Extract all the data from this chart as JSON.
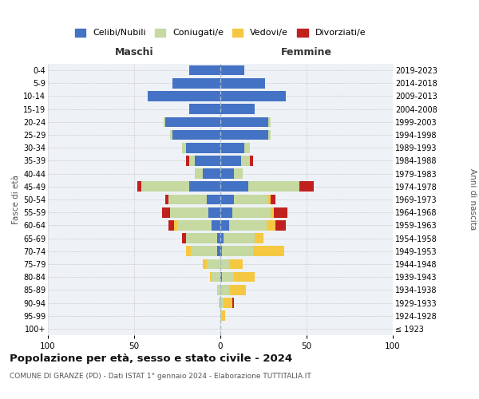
{
  "age_groups": [
    "100+",
    "95-99",
    "90-94",
    "85-89",
    "80-84",
    "75-79",
    "70-74",
    "65-69",
    "60-64",
    "55-59",
    "50-54",
    "45-49",
    "40-44",
    "35-39",
    "30-34",
    "25-29",
    "20-24",
    "15-19",
    "10-14",
    "5-9",
    "0-4"
  ],
  "birth_years": [
    "≤ 1923",
    "1924-1928",
    "1929-1933",
    "1934-1938",
    "1939-1943",
    "1944-1948",
    "1949-1953",
    "1954-1958",
    "1959-1963",
    "1964-1968",
    "1969-1973",
    "1974-1978",
    "1979-1983",
    "1984-1988",
    "1989-1993",
    "1994-1998",
    "1999-2003",
    "2004-2008",
    "2009-2013",
    "2014-2018",
    "2019-2023"
  ],
  "m_cel": [
    0,
    0,
    0,
    0,
    0,
    0,
    2,
    2,
    5,
    7,
    8,
    18,
    10,
    15,
    20,
    28,
    32,
    18,
    42,
    28,
    18
  ],
  "m_con": [
    0,
    0,
    1,
    2,
    5,
    8,
    15,
    18,
    20,
    22,
    22,
    28,
    5,
    3,
    2,
    1,
    1,
    0,
    0,
    0,
    0
  ],
  "m_ved": [
    0,
    0,
    0,
    0,
    1,
    2,
    3,
    0,
    2,
    0,
    0,
    0,
    0,
    0,
    0,
    0,
    0,
    0,
    0,
    0,
    0
  ],
  "m_div": [
    0,
    0,
    0,
    0,
    0,
    0,
    0,
    2,
    3,
    5,
    2,
    2,
    0,
    2,
    0,
    0,
    0,
    0,
    0,
    0,
    0
  ],
  "f_nub": [
    0,
    0,
    0,
    0,
    1,
    0,
    1,
    2,
    5,
    7,
    8,
    16,
    8,
    12,
    14,
    28,
    28,
    20,
    38,
    26,
    14
  ],
  "f_con": [
    0,
    1,
    2,
    5,
    7,
    5,
    18,
    18,
    22,
    22,
    20,
    30,
    5,
    5,
    3,
    1,
    1,
    0,
    0,
    0,
    0
  ],
  "f_ved": [
    0,
    2,
    5,
    10,
    12,
    8,
    18,
    5,
    5,
    2,
    1,
    0,
    0,
    0,
    0,
    0,
    0,
    0,
    0,
    0,
    0
  ],
  "f_div": [
    0,
    0,
    1,
    0,
    0,
    0,
    0,
    0,
    6,
    8,
    3,
    8,
    0,
    2,
    0,
    0,
    0,
    0,
    0,
    0,
    0
  ],
  "colors": {
    "celibi_nubili": "#4472c4",
    "coniugati": "#c5d9a0",
    "vedovi": "#f5c842",
    "divorziati": "#c0211f"
  },
  "xlim": 100,
  "title": "Popolazione per età, sesso e stato civile - 2024",
  "subtitle": "COMUNE DI GRANZE (PD) - Dati ISTAT 1° gennaio 2024 - Elaborazione TUTTITALIA.IT",
  "xlabel_left": "Maschi",
  "xlabel_right": "Femmine",
  "ylabel_left": "Fasce di età",
  "ylabel_right": "Anni di nascita",
  "bg_color": "#eef2f7",
  "center_line_color": "#aabbcc",
  "legend_labels": [
    "Celibi/Nubili",
    "Coniugati/e",
    "Vedovi/e",
    "Divorziati/e"
  ]
}
